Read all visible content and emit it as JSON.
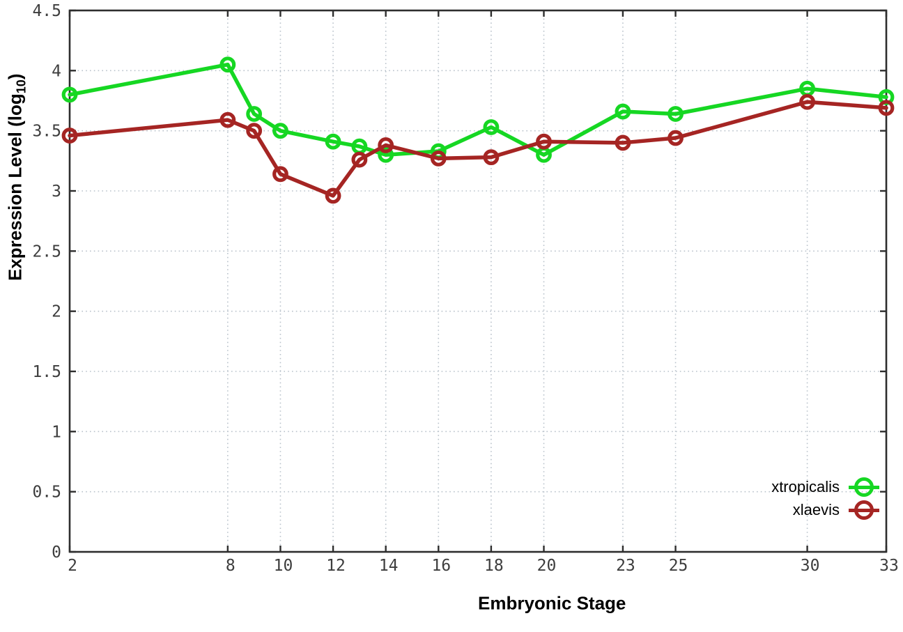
{
  "chart_data": {
    "type": "line",
    "title": "",
    "xlabel": "Embryonic Stage",
    "ylabel": "Expression Level (log10)",
    "ylabel_parts": {
      "main": "Expression Level (log",
      "sub": "10",
      "close": ")"
    },
    "x": [
      2,
      8,
      9,
      10,
      12,
      13,
      14,
      16,
      18,
      20,
      23,
      25,
      30,
      33
    ],
    "xlim": [
      2,
      33
    ],
    "ylim": [
      0,
      4.5
    ],
    "x_ticks": [
      2,
      8,
      10,
      12,
      14,
      16,
      18,
      20,
      23,
      25,
      30,
      33
    ],
    "y_ticks": [
      0,
      0.5,
      1,
      1.5,
      2,
      2.5,
      3,
      3.5,
      4,
      4.5
    ],
    "grid": true,
    "legend_position": "inside-bottom-right",
    "marker": "open-circle",
    "series": [
      {
        "name": "xtropicalis",
        "color": "#16d723",
        "values": [
          3.8,
          4.05,
          3.64,
          3.5,
          3.41,
          3.37,
          3.3,
          3.33,
          3.53,
          3.3,
          3.66,
          3.64,
          3.85,
          3.78
        ]
      },
      {
        "name": "xlaevis",
        "color": "#a52523",
        "values": [
          3.46,
          3.59,
          3.5,
          3.14,
          2.96,
          3.26,
          3.38,
          3.27,
          3.28,
          3.41,
          3.4,
          3.44,
          3.74,
          3.69
        ]
      }
    ]
  },
  "styles": {
    "background": "#ffffff",
    "grid_color": "#b9c2cb",
    "axis_color": "#2e2e2e",
    "tick_label_color": "#3d3d3d"
  }
}
